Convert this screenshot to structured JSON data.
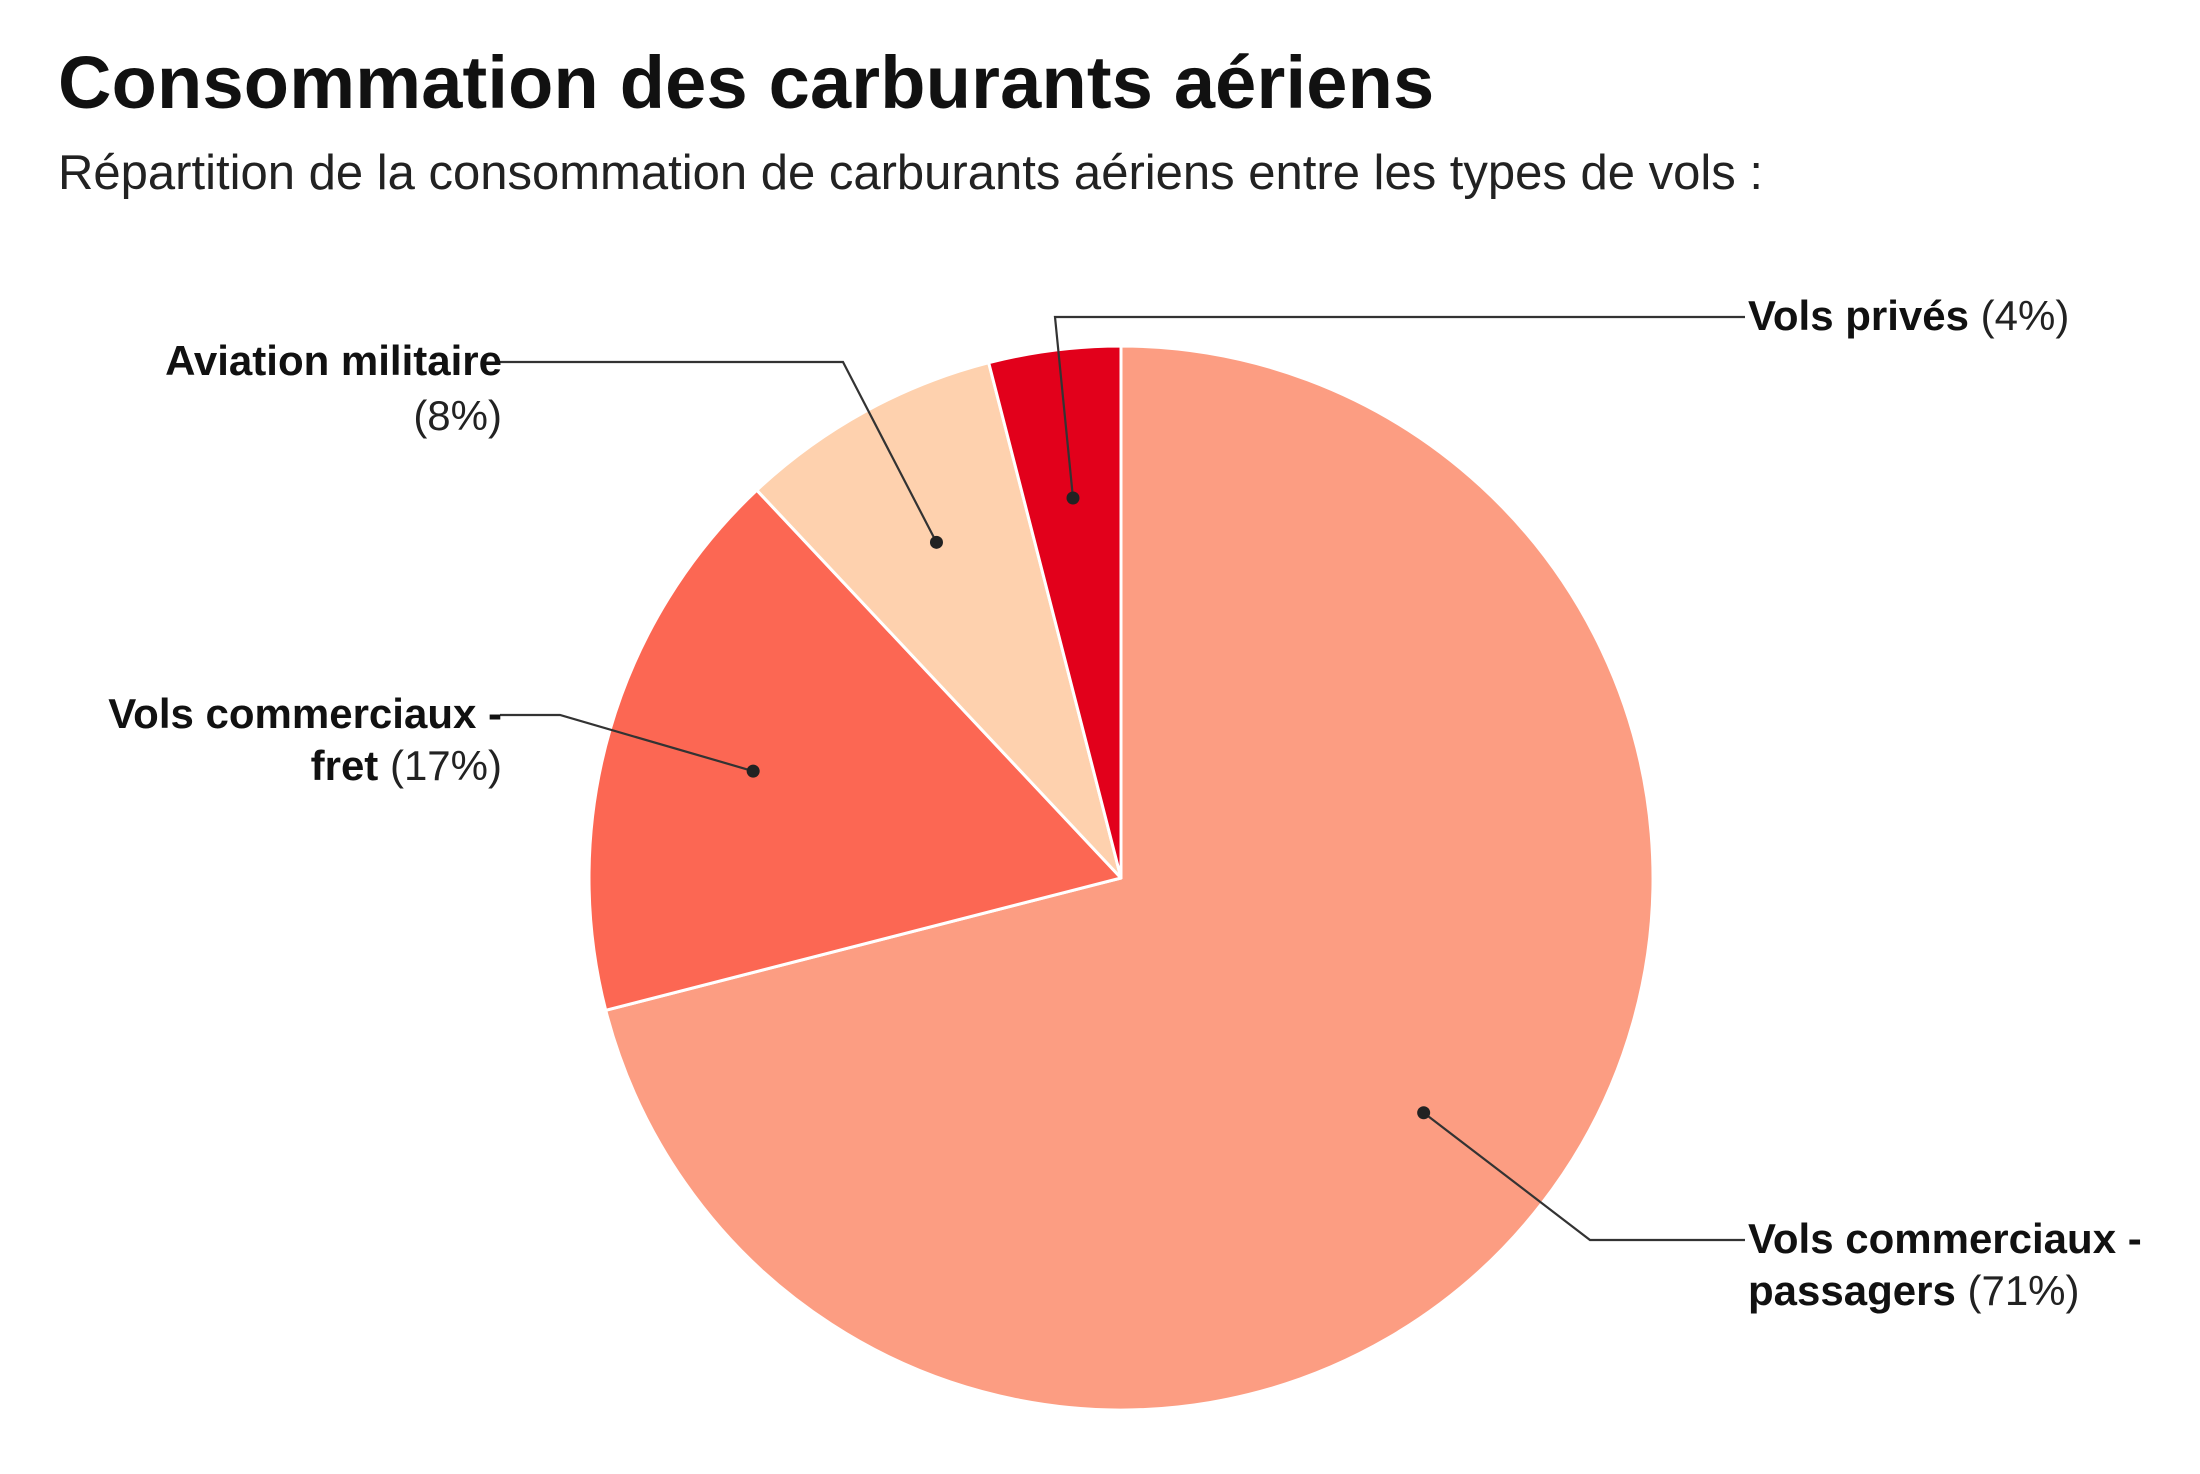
{
  "title": "Consommation des carburants aériens",
  "subtitle": "Répartition de la consommation de carburants aériens entre les types de vols :",
  "chart_data": {
    "type": "pie",
    "start": "12 o'clock",
    "direction": "clockwise",
    "legend": "none",
    "slices": [
      {
        "label": "Vols commerciaux - passagers",
        "value": 71,
        "value_label": "(71%)",
        "color": "#FC9D82",
        "label_lines": [
          "Vols commerciaux -",
          "passagers"
        ],
        "label_side": "right"
      },
      {
        "label": "Vols commerciaux - fret",
        "value": 17,
        "value_label": "(17%)",
        "color": "#FC6753",
        "label_lines": [
          "Vols commerciaux -",
          "fret"
        ],
        "label_side": "left"
      },
      {
        "label": "Aviation militaire",
        "value": 8,
        "value_label": "(8%)",
        "color": "#FED1AE",
        "label_lines": [
          "Aviation militaire"
        ],
        "label_side": "left"
      },
      {
        "label": "Vols privés",
        "value": 4,
        "value_label": "(4%)",
        "color": "#E2001B",
        "label_lines": [
          "Vols privés"
        ],
        "label_side": "right"
      }
    ]
  }
}
